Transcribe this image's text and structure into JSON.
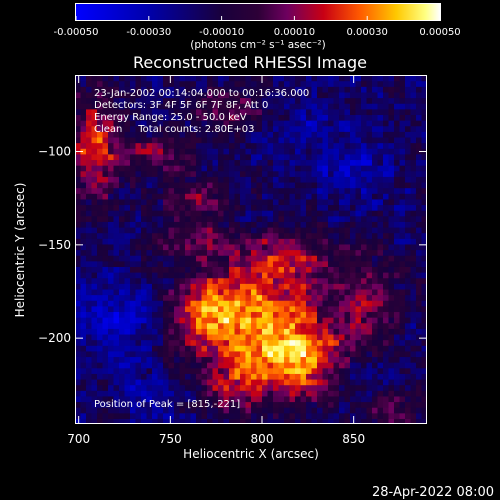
{
  "chart_data": {
    "type": "heatmap",
    "title": "Reconstructed RHESSI Image",
    "xlabel": "Heliocentric X (arcsec)",
    "ylabel": "Heliocentric Y (arcsec)",
    "xlim": [
      698,
      890
    ],
    "ylim": [
      -246,
      -59
    ],
    "x_ticks": [
      700,
      750,
      800,
      850
    ],
    "y_ticks": [
      -100,
      -150,
      -200
    ],
    "colorbar": {
      "range": [
        -0.0005,
        0.0005
      ],
      "tick_values": [
        -0.0005,
        -0.0003,
        -0.0001,
        0.0001,
        0.0003,
        0.0005
      ],
      "tick_labels": [
        "-0.00050",
        "-0.00030",
        "-0.00010",
        "0.00010",
        "0.00030",
        "0.00050"
      ],
      "unit_label": "(photons cm⁻² s⁻¹ asec⁻²)"
    },
    "info_lines": [
      "23-Jan-2002 00:14:04.000 to 00:16:36.000",
      "Detectors: 3F 4F 5F 6F 7F 8F, Att 0",
      "Energy Range: 25.0 - 50.0 keV",
      "Clean     Total counts: 2.80E+03"
    ],
    "peak_label": "Position of Peak = [815,-221]",
    "peak": {
      "x": 815,
      "y": -221
    },
    "sources": [
      {
        "x": 803,
        "y": -190,
        "sx": 28,
        "sy": 24,
        "amp": 0.00042
      },
      {
        "x": 770,
        "y": -186,
        "sx": 16,
        "sy": 14,
        "amp": 0.0003
      },
      {
        "x": 820,
        "y": -213,
        "sx": 16,
        "sy": 12,
        "amp": 0.00034
      },
      {
        "x": 858,
        "y": -182,
        "sx": 11,
        "sy": 18,
        "amp": 0.0002
      },
      {
        "x": 812,
        "y": -155,
        "sx": 16,
        "sy": 8,
        "amp": 0.00022
      },
      {
        "x": 760,
        "y": -146,
        "sx": 14,
        "sy": 7,
        "amp": 0.0002
      },
      {
        "x": 709,
        "y": -97,
        "sx": 10,
        "sy": 20,
        "amp": 0.00038
      },
      {
        "x": 742,
        "y": -101,
        "sx": 12,
        "sy": 7,
        "amp": 0.00026
      },
      {
        "x": 764,
        "y": -125,
        "sx": 11,
        "sy": 8,
        "amp": 0.00024
      },
      {
        "x": 782,
        "y": -76,
        "sx": 14,
        "sy": 10,
        "amp": 0.00018
      },
      {
        "x": 870,
        "y": -238,
        "sx": 9,
        "sy": 8,
        "amp": 0.00025
      },
      {
        "x": 785,
        "y": -226,
        "sx": 12,
        "sy": 9,
        "amp": 0.00022
      }
    ],
    "negative_patches": [
      {
        "x": 722,
        "y": -190,
        "sx": 16,
        "sy": 14,
        "amp": -0.00024
      },
      {
        "x": 738,
        "y": -232,
        "sx": 12,
        "sy": 9,
        "amp": -0.00018
      },
      {
        "x": 848,
        "y": -110,
        "sx": 13,
        "sy": 12,
        "amp": -0.00018
      },
      {
        "x": 858,
        "y": -220,
        "sx": 10,
        "sy": 8,
        "amp": -0.00014
      },
      {
        "x": 826,
        "y": -88,
        "sx": 12,
        "sy": 9,
        "amp": -0.00012
      }
    ],
    "background": -0.00016,
    "grid": false,
    "colormap": "blue-black-red-yellow-white"
  },
  "footer": {
    "timestamp": "28-Apr-2022 08:00"
  }
}
